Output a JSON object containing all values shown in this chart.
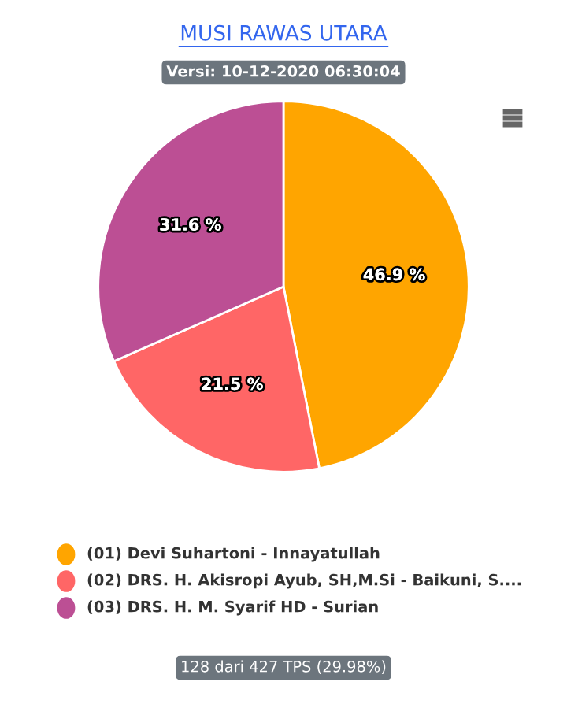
{
  "chart_data": {
    "type": "pie",
    "title": "MUSI RAWAS UTARA",
    "subtitle": "Versi: 10-12-2020 06:30:04",
    "categories": [
      "(01) Devi Suhartoni - Innayatullah",
      "(02) DRS. H. Akisropi Ayub, SH,M.Si - Baikuni, S....",
      "(03) DRS. H. M. Syarif HD - Surian"
    ],
    "values": [
      46.9,
      21.5,
      31.6
    ],
    "colors": [
      "#ffa500",
      "#ff6666",
      "#bc4f94"
    ],
    "value_labels": [
      "46.9 %",
      "21.5 %",
      "31.6 %"
    ],
    "legend": "bottom",
    "annotations": [
      "128 dari 427 TPS (29.98%)"
    ]
  }
}
